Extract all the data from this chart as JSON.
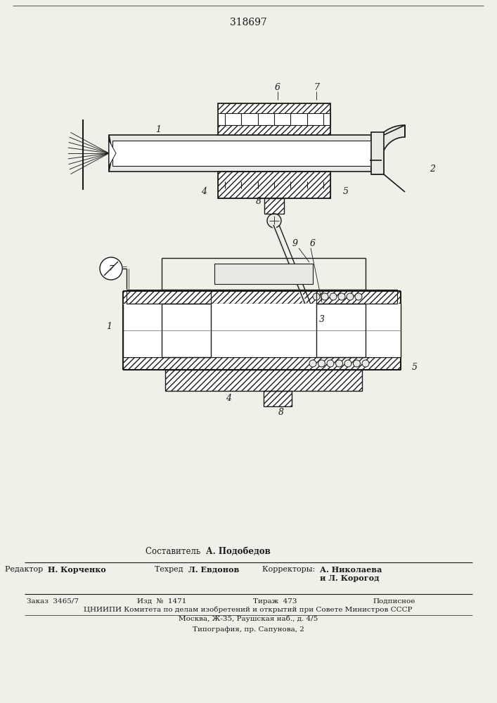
{
  "title": "318697",
  "bg_color": "#f0efe8",
  "footer_composer": "Составитель  А. Подобедов",
  "footer_line1_left": "Редактор  Н. Корченко",
  "footer_line1_center": "Техред  Л. Евдонов",
  "footer_line1_right": "Корректоры:  А. Николаева",
  "footer_line2_right": "и Л. Корогод",
  "footer_order": "Заказ  3465/7",
  "footer_izd": "Изд  №  1471",
  "footer_tirazh": "Тираж  473",
  "footer_podp": "Подписное",
  "footer_cniip": "ЦНИИПИ Комитета по делам изобретений и открытий при Совете Министров СССР",
  "footer_addr": "Москва, Ж-35, Раушская наб., д. 4/5",
  "footer_tipog": "Типография, пр. Сапунова, 2",
  "line_color": "#1a1a1a",
  "white": "#ffffff",
  "light_gray": "#e8e8e4",
  "mid_gray": "#d0d0cc"
}
